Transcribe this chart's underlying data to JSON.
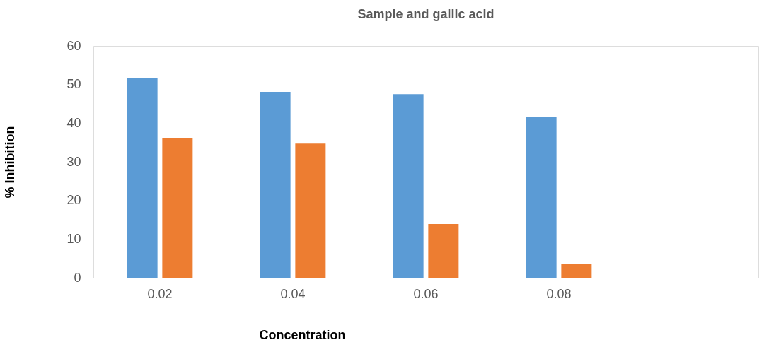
{
  "chart_data": {
    "type": "bar",
    "title": "Sample and gallic acid",
    "xlabel": "Concentration",
    "ylabel": "% Inhibition",
    "categories": [
      "0.02",
      "0.04",
      "0.06",
      "0.08",
      null
    ],
    "series": [
      {
        "color": "#5b9bd5",
        "values": [
          51.6,
          48.1,
          47.5,
          41.7,
          null
        ]
      },
      {
        "color": "#ed7d31",
        "values": [
          36.2,
          34.7,
          13.9,
          3.5,
          null
        ]
      }
    ],
    "ylim": [
      0,
      60
    ],
    "yticks": [
      0,
      10,
      20,
      30,
      40,
      50,
      60
    ],
    "grid": false,
    "legend": false
  }
}
